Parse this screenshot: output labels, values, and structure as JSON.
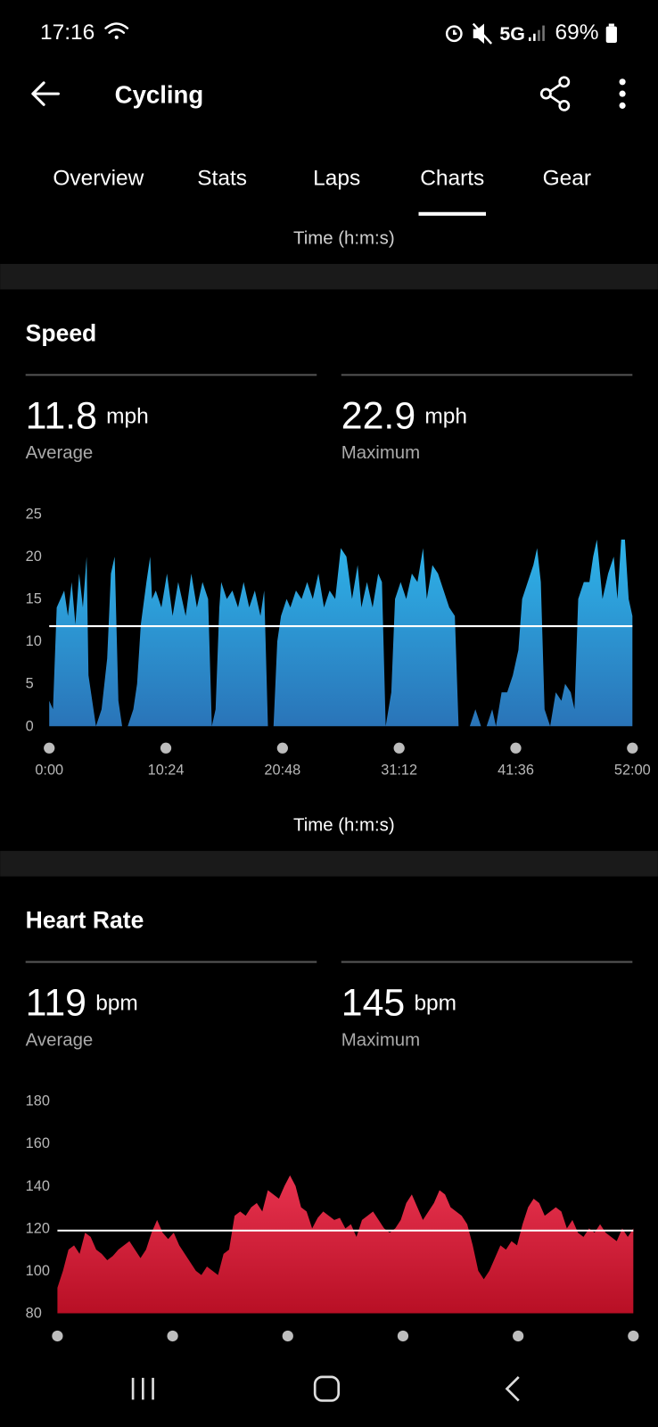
{
  "status_bar": {
    "time": "17:16",
    "network": "5G",
    "battery": "69%"
  },
  "header": {
    "title": "Cycling"
  },
  "tabs": {
    "items": [
      "Overview",
      "Stats",
      "Laps",
      "Charts",
      "Gear"
    ],
    "active_index": 3
  },
  "previous_chart_x_label": "Time (h:m:s)",
  "chart_data": [
    {
      "type": "area",
      "title": "Speed",
      "colors": [
        "#2eb4ea",
        "#2a74b8"
      ],
      "stats": [
        {
          "value": 11.8,
          "unit": "mph",
          "label": "Average"
        },
        {
          "value": 22.9,
          "unit": "mph",
          "label": "Maximum"
        }
      ],
      "x": [
        0,
        20,
        40,
        60,
        80,
        100,
        120,
        140,
        160,
        180,
        200,
        210,
        230,
        250,
        280,
        310,
        330,
        350,
        370,
        390,
        420,
        450,
        470,
        490,
        520,
        540,
        550,
        570,
        600,
        630,
        660,
        690,
        710,
        730,
        760,
        790,
        820,
        850,
        870,
        890,
        910,
        920,
        950,
        980,
        1010,
        1040,
        1070,
        1100,
        1130,
        1150,
        1170,
        1200,
        1220,
        1240,
        1270,
        1290,
        1320,
        1350,
        1380,
        1410,
        1440,
        1470,
        1500,
        1530,
        1560,
        1590,
        1620,
        1650,
        1670,
        1700,
        1730,
        1760,
        1780,
        1800,
        1830,
        1850,
        1880,
        1910,
        1940,
        1970,
        2000,
        2020,
        2050,
        2080,
        2110,
        2140,
        2170,
        2190,
        2220,
        2250,
        2280,
        2310,
        2340,
        2370,
        2390,
        2420,
        2450,
        2480,
        2510,
        2530,
        2560,
        2590,
        2610,
        2630,
        2650,
        2680,
        2710,
        2740,
        2760,
        2790,
        2810,
        2830,
        2860,
        2890,
        2910,
        2930,
        2960,
        2990,
        3020,
        3040,
        3060,
        3080,
        3100,
        3120
      ],
      "values": [
        3,
        2,
        14,
        15,
        16,
        13,
        17,
        12,
        18,
        14,
        20,
        6,
        3,
        0,
        2,
        8,
        18,
        20,
        3,
        0,
        0,
        2,
        5,
        12,
        17,
        20,
        15,
        16,
        14,
        18,
        13,
        17,
        15,
        13,
        18,
        14,
        17,
        15,
        0,
        2,
        14,
        17,
        15,
        16,
        14,
        17,
        14,
        16,
        13,
        16,
        0,
        0,
        10,
        13,
        15,
        14,
        16,
        15,
        17,
        15,
        18,
        14,
        16,
        15,
        21,
        20,
        15,
        19,
        14,
        17,
        14,
        18,
        17,
        0,
        4,
        15,
        17,
        15,
        18,
        17,
        21,
        15,
        19,
        18,
        16,
        14,
        13,
        0,
        0,
        0,
        2,
        0,
        0,
        2,
        0,
        4,
        4,
        6,
        9,
        15,
        17,
        19,
        21,
        17,
        2,
        0,
        4,
        3,
        5,
        4,
        2,
        15,
        17,
        17,
        20,
        22,
        15,
        18,
        20,
        15,
        22,
        22,
        15,
        13
      ],
      "xlim": [
        0,
        3120
      ],
      "ylim": [
        0,
        25
      ],
      "yticks": [
        0,
        5,
        10,
        15,
        20,
        25
      ],
      "xticks": [
        {
          "value": 0,
          "label": "0:00"
        },
        {
          "value": 624,
          "label": "10:24"
        },
        {
          "value": 1248,
          "label": "20:48"
        },
        {
          "value": 1872,
          "label": "31:12"
        },
        {
          "value": 2496,
          "label": "41:36"
        },
        {
          "value": 3120,
          "label": "52:00"
        }
      ],
      "x_label": "Time (h:m:s)"
    },
    {
      "type": "area",
      "title": "Heart Rate",
      "colors": [
        "#e8334f",
        "#b80f25"
      ],
      "stats": [
        {
          "value": 119,
          "unit": "bpm",
          "label": "Average"
        },
        {
          "value": 145,
          "unit": "bpm",
          "label": "Maximum"
        }
      ],
      "x": [
        0,
        30,
        60,
        90,
        120,
        150,
        180,
        210,
        240,
        270,
        300,
        330,
        360,
        390,
        420,
        450,
        480,
        510,
        540,
        570,
        600,
        630,
        660,
        690,
        720,
        750,
        780,
        810,
        840,
        870,
        900,
        930,
        960,
        990,
        1020,
        1050,
        1080,
        1110,
        1140,
        1170,
        1200,
        1230,
        1260,
        1290,
        1320,
        1350,
        1380,
        1410,
        1440,
        1470,
        1500,
        1530,
        1560,
        1590,
        1620,
        1650,
        1680,
        1710,
        1740,
        1770,
        1800,
        1830,
        1860,
        1890,
        1920,
        1950,
        1980,
        2010,
        2040,
        2070,
        2100,
        2130,
        2160,
        2190,
        2220,
        2250,
        2280,
        2310,
        2340,
        2370,
        2400,
        2430,
        2460,
        2490,
        2520,
        2550,
        2580,
        2610,
        2640,
        2670,
        2700,
        2730,
        2760,
        2790,
        2820,
        2850,
        2880,
        2910,
        2940,
        2970,
        3000,
        3030,
        3060,
        3090,
        3120
      ],
      "values": [
        92,
        100,
        110,
        112,
        108,
        118,
        116,
        110,
        108,
        105,
        107,
        110,
        112,
        114,
        110,
        106,
        110,
        118,
        124,
        118,
        115,
        118,
        112,
        108,
        104,
        100,
        98,
        102,
        100,
        98,
        108,
        110,
        126,
        128,
        126,
        130,
        132,
        128,
        138,
        136,
        134,
        140,
        145,
        140,
        130,
        128,
        120,
        125,
        128,
        126,
        124,
        125,
        120,
        122,
        116,
        124,
        126,
        128,
        124,
        120,
        118,
        120,
        124,
        132,
        136,
        130,
        124,
        128,
        132,
        138,
        136,
        130,
        128,
        126,
        122,
        112,
        100,
        96,
        100,
        106,
        112,
        110,
        114,
        112,
        122,
        130,
        134,
        132,
        126,
        128,
        130,
        128,
        120,
        124,
        118,
        116,
        120,
        118,
        122,
        118,
        116,
        114,
        120,
        116,
        120
      ],
      "xlim": [
        0,
        3120
      ],
      "ylim": [
        80,
        180
      ],
      "yticks": [
        80,
        100,
        120,
        140,
        160,
        180
      ],
      "xticks": [
        0,
        624,
        1248,
        1872,
        2496,
        3120
      ]
    }
  ]
}
